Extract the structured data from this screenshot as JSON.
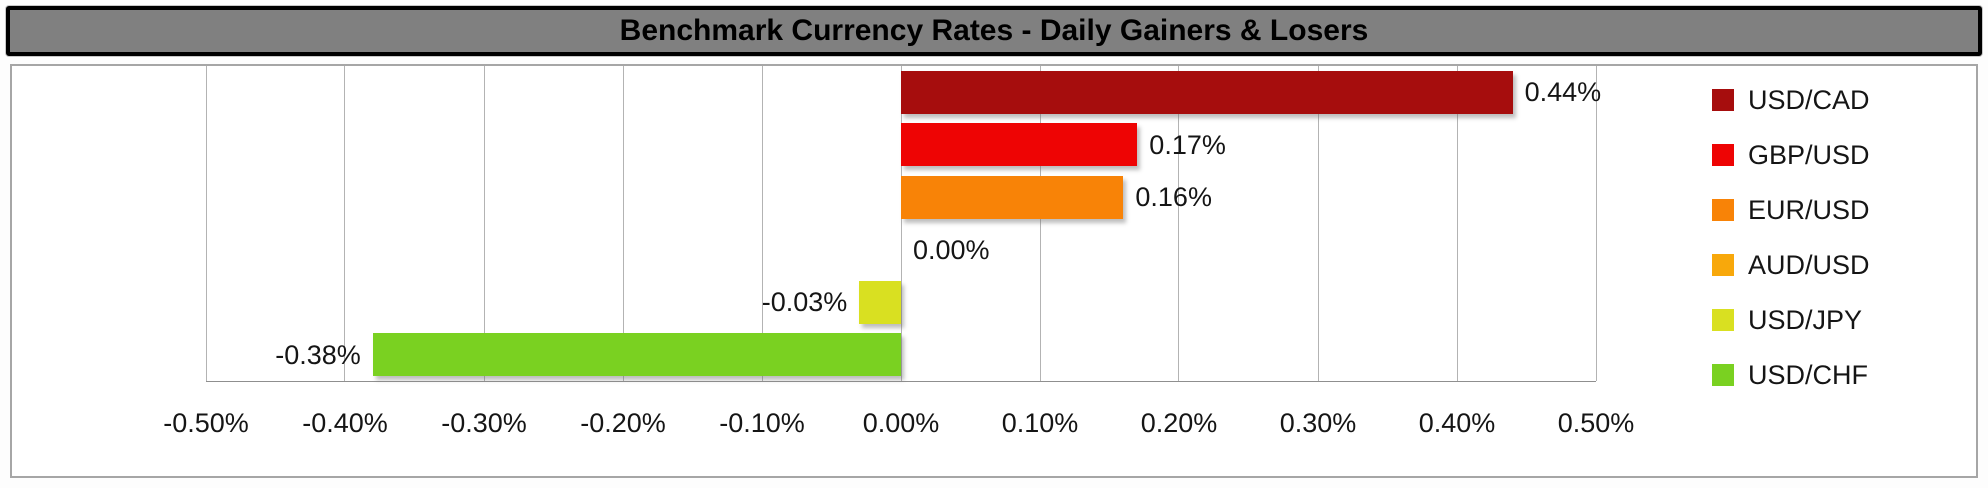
{
  "title": "Benchmark Currency Rates - Daily Gainers & Losers",
  "styles": {
    "title_bg": "#808080",
    "title_border": "#000000",
    "chart_border": "#a6a6a6",
    "grid_color": "#b3b3b3",
    "axis_color": "#8f8f8f",
    "label_color": "#151515"
  },
  "chart_data": {
    "type": "bar",
    "orientation": "horizontal",
    "title": "Benchmark Currency Rates - Daily Gainers & Losers",
    "categories": [
      "USD/CAD",
      "GBP/USD",
      "EUR/USD",
      "AUD/USD",
      "USD/JPY",
      "USD/CHF"
    ],
    "values": [
      0.44,
      0.17,
      0.16,
      0.0,
      -0.03,
      -0.38
    ],
    "data_labels": [
      "0.44%",
      "0.17%",
      "0.16%",
      "0.00%",
      "-0.03%",
      "-0.38%"
    ],
    "bar_colors": [
      "#a60d0d",
      "#ee0404",
      "#f88307",
      "#f8a80b",
      "#d9e021",
      "#7ad121"
    ],
    "xlim": [
      -0.5,
      0.5
    ],
    "x_ticks": [
      -0.5,
      -0.4,
      -0.3,
      -0.2,
      -0.1,
      0.0,
      0.1,
      0.2,
      0.3,
      0.4,
      0.5
    ],
    "x_tick_labels": [
      "-0.50%",
      "-0.40%",
      "-0.30%",
      "-0.20%",
      "-0.10%",
      "0.00%",
      "0.10%",
      "0.20%",
      "0.30%",
      "0.40%",
      "0.50%"
    ],
    "grid": true,
    "legend_position": "right"
  },
  "legend": {
    "items": [
      {
        "label": "USD/CAD",
        "color": "#a60d0d"
      },
      {
        "label": "GBP/USD",
        "color": "#ee0404"
      },
      {
        "label": "EUR/USD",
        "color": "#f88307"
      },
      {
        "label": "AUD/USD",
        "color": "#f8a80b"
      },
      {
        "label": "USD/JPY",
        "color": "#d9e021"
      },
      {
        "label": "USD/CHF",
        "color": "#7ad121"
      }
    ]
  }
}
